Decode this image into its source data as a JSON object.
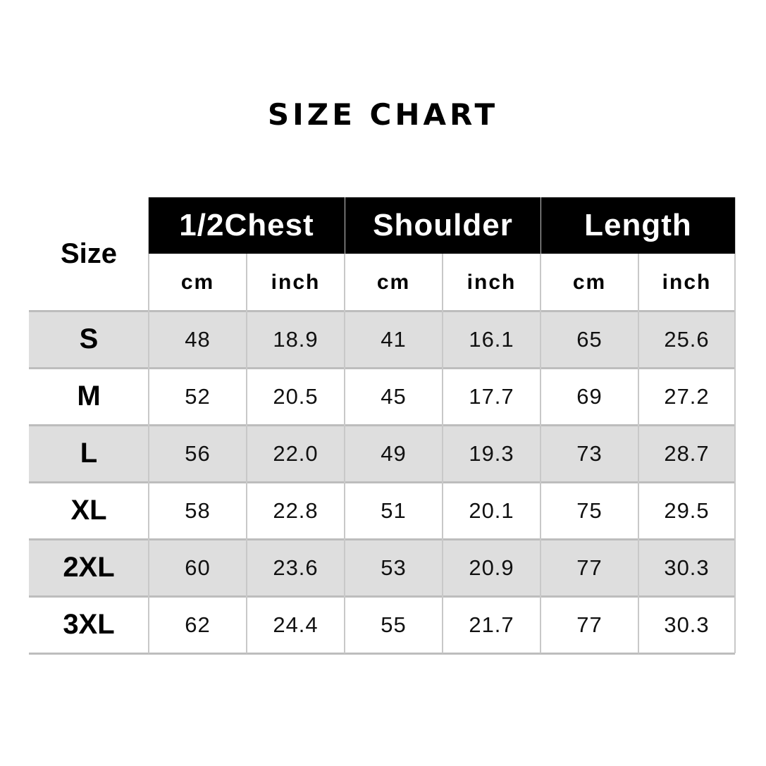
{
  "title": "SIZE CHART",
  "table": {
    "size_header": "Size",
    "groups": [
      "1/2Chest",
      "Shoulder",
      "Length"
    ],
    "units": [
      "cm",
      "inch",
      "cm",
      "inch",
      "cm",
      "inch"
    ],
    "rows": [
      {
        "size": "S",
        "values": [
          "48",
          "18.9",
          "41",
          "16.1",
          "65",
          "25.6"
        ],
        "shaded": true
      },
      {
        "size": "M",
        "values": [
          "52",
          "20.5",
          "45",
          "17.7",
          "69",
          "27.2"
        ],
        "shaded": false
      },
      {
        "size": "L",
        "values": [
          "56",
          "22.0",
          "49",
          "19.3",
          "73",
          "28.7"
        ],
        "shaded": true
      },
      {
        "size": "XL",
        "values": [
          "58",
          "22.8",
          "51",
          "20.1",
          "75",
          "29.5"
        ],
        "shaded": false
      },
      {
        "size": "2XL",
        "values": [
          "60",
          "23.6",
          "53",
          "20.9",
          "77",
          "30.3"
        ],
        "shaded": true
      },
      {
        "size": "3XL",
        "values": [
          "62",
          "24.4",
          "55",
          "21.7",
          "77",
          "30.3"
        ],
        "shaded": false
      }
    ]
  },
  "colors": {
    "header_bg": "#000000",
    "shade": "#dedede",
    "grid": "#bdbdbd"
  }
}
